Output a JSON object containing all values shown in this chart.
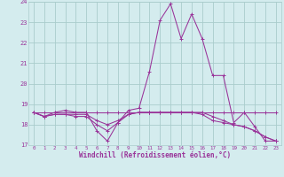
{
  "xlabel": "Windchill (Refroidissement éolien,°C)",
  "bg_color": "#d4ecee",
  "line_color": "#993399",
  "grid_color": "#aacccc",
  "text_color": "#993399",
  "xlim": [
    -0.5,
    23.5
  ],
  "ylim": [
    17.0,
    24.0
  ],
  "yticks": [
    17,
    18,
    19,
    20,
    21,
    22,
    23,
    24
  ],
  "xticks": [
    0,
    1,
    2,
    3,
    4,
    5,
    6,
    7,
    8,
    9,
    10,
    11,
    12,
    13,
    14,
    15,
    16,
    17,
    18,
    19,
    20,
    21,
    22,
    23
  ],
  "hours": [
    0,
    1,
    2,
    3,
    4,
    5,
    6,
    7,
    8,
    9,
    10,
    11,
    12,
    13,
    14,
    15,
    16,
    17,
    18,
    19,
    20,
    21,
    22,
    23
  ],
  "line1": [
    18.6,
    18.4,
    18.6,
    18.7,
    18.6,
    18.6,
    17.7,
    17.2,
    18.1,
    18.7,
    18.8,
    20.6,
    23.1,
    23.9,
    22.2,
    23.4,
    22.2,
    20.4,
    20.4,
    18.1,
    18.6,
    17.9,
    17.2,
    17.2
  ],
  "line2": [
    18.6,
    18.4,
    18.5,
    18.5,
    18.4,
    18.4,
    18.0,
    17.7,
    18.1,
    18.5,
    18.6,
    18.6,
    18.6,
    18.6,
    18.6,
    18.6,
    18.6,
    18.4,
    18.2,
    18.0,
    17.9,
    17.7,
    17.4,
    17.2
  ],
  "line3": [
    18.6,
    18.6,
    18.6,
    18.6,
    18.6,
    18.6,
    18.6,
    18.6,
    18.6,
    18.6,
    18.6,
    18.6,
    18.6,
    18.6,
    18.6,
    18.6,
    18.6,
    18.6,
    18.6,
    18.6,
    18.6,
    18.6,
    18.6,
    18.6
  ],
  "line4": [
    18.6,
    18.4,
    18.5,
    18.5,
    18.5,
    18.5,
    18.2,
    18.0,
    18.2,
    18.5,
    18.6,
    18.6,
    18.6,
    18.6,
    18.6,
    18.6,
    18.5,
    18.2,
    18.1,
    18.0,
    17.9,
    17.7,
    17.4,
    17.2
  ]
}
